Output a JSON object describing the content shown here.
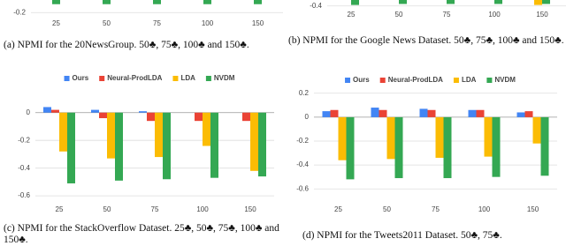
{
  "chart_data": [
    {
      "type": "bar",
      "caption": "(a) NPMI for the 20NewsGroup. 50♣, 75♣, 100♣ and 150♣.",
      "categories": [
        "25",
        "50",
        "75",
        "100",
        "150"
      ],
      "series": [
        {
          "color": "#34a853",
          "values": [
            -0.16,
            -0.16,
            -0.16,
            -0.16,
            -0.16
          ]
        }
      ],
      "ylim": [
        -0.22,
        -0.14
      ],
      "yticks": [
        -0.2
      ],
      "grid": true,
      "legend": false
    },
    {
      "type": "bar",
      "caption": "(b) NPMI for the Google News Dataset. 50♣, 75♣, 100♣ and 150♣.",
      "categories": [
        "25",
        "50",
        "75",
        "100",
        "150"
      ],
      "series": [
        {
          "color": "#fbbc04",
          "values": [
            null,
            null,
            null,
            null,
            -0.39
          ]
        },
        {
          "color": "#34a853",
          "values": [
            -0.39,
            -0.38,
            -0.38,
            -0.38,
            -0.38
          ]
        }
      ],
      "ylim": [
        -0.42,
        -0.34
      ],
      "yticks": [
        -0.4
      ],
      "grid": true,
      "legend": false
    },
    {
      "type": "bar",
      "caption": "(c) NPMI for the StackOverflow Dataset. 25♣, 50♣, 75♣, 100♣ and 150♣.",
      "categories": [
        "25",
        "50",
        "75",
        "100",
        "150"
      ],
      "series": [
        {
          "name": "Ours",
          "color": "#4285f4",
          "values": [
            0.04,
            0.02,
            0.01,
            0,
            0
          ]
        },
        {
          "name": "Neural-ProdLDA",
          "color": "#ea4335",
          "values": [
            0.02,
            -0.04,
            -0.06,
            -0.06,
            -0.06
          ]
        },
        {
          "name": "LDA",
          "color": "#fbbc04",
          "values": [
            -0.28,
            -0.33,
            -0.32,
            -0.24,
            -0.42
          ]
        },
        {
          "name": "NVDM",
          "color": "#34a853",
          "values": [
            -0.51,
            -0.49,
            -0.48,
            -0.47,
            -0.46
          ]
        }
      ],
      "ylim": [
        -0.65,
        0.1
      ],
      "yticks": [
        0,
        -0.2,
        -0.4,
        -0.6
      ],
      "grid": true,
      "legend": true
    },
    {
      "type": "bar",
      "caption": "(d) NPMI for the Tweets2011 Dataset. 50♣, 75♣.",
      "categories": [
        "25",
        "50",
        "75",
        "100",
        "150"
      ],
      "series": [
        {
          "name": "Ours",
          "color": "#4285f4",
          "values": [
            0.05,
            0.08,
            0.07,
            0.06,
            0.04
          ]
        },
        {
          "name": "Neural-ProdLDA",
          "color": "#ea4335",
          "values": [
            0.06,
            0.06,
            0.06,
            0.06,
            0.05
          ]
        },
        {
          "name": "LDA",
          "color": "#fbbc04",
          "values": [
            -0.36,
            -0.35,
            -0.34,
            -0.33,
            -0.22
          ]
        },
        {
          "name": "NVDM",
          "color": "#34a853",
          "values": [
            -0.52,
            -0.51,
            -0.51,
            -0.5,
            -0.49
          ]
        }
      ],
      "ylim": [
        -0.65,
        0.25
      ],
      "yticks": [
        0.2,
        0,
        -0.2,
        -0.4,
        -0.6
      ],
      "grid": true,
      "legend": true
    }
  ]
}
